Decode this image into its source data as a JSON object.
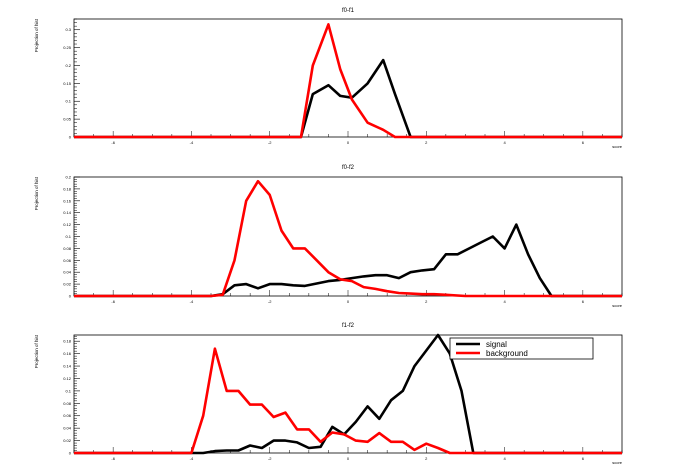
{
  "chart_data": [
    {
      "type": "line",
      "title": "f0-f1",
      "xlabel": "score",
      "ylabel": "Projection of hist",
      "xlim": [
        -7,
        7
      ],
      "ylim": [
        0,
        0.33
      ],
      "yticks": [
        0,
        0.05,
        0.1,
        0.15,
        0.2,
        0.25,
        0.3
      ],
      "ytick_labels": [
        "0",
        "0.05",
        "0.1",
        "0.15",
        "0.2",
        "0.25",
        "0.3"
      ],
      "xticks": [
        -6,
        -4,
        -2,
        0,
        2,
        4,
        6
      ],
      "xtick_labels": [
        "-6",
        "-4",
        "-2",
        "0",
        "2",
        "4",
        "6"
      ],
      "series": [
        {
          "name": "signal",
          "color": "#000000",
          "x": [
            -7,
            -1.2,
            -0.9,
            -0.5,
            -0.2,
            0.1,
            0.5,
            0.9,
            1.2,
            1.6,
            7
          ],
          "y": [
            0,
            0,
            0.12,
            0.145,
            0.115,
            0.11,
            0.15,
            0.215,
            0.12,
            0,
            0
          ]
        },
        {
          "name": "background",
          "color": "#ff0000",
          "x": [
            -7,
            -1.2,
            -0.9,
            -0.5,
            -0.2,
            0.1,
            0.5,
            0.9,
            1.2,
            7
          ],
          "y": [
            0,
            0,
            0.2,
            0.315,
            0.19,
            0.105,
            0.04,
            0.02,
            0,
            0
          ]
        }
      ]
    },
    {
      "type": "line",
      "title": "f0-f2",
      "xlabel": "score",
      "ylabel": "Projection of hist",
      "xlim": [
        -7,
        7
      ],
      "ylim": [
        0,
        0.2
      ],
      "yticks": [
        0,
        0.02,
        0.04,
        0.06,
        0.08,
        0.1,
        0.12,
        0.14,
        0.16,
        0.18,
        0.2
      ],
      "ytick_labels": [
        "0",
        "0.02",
        "0.04",
        "0.06",
        "0.08",
        "0.1",
        "0.12",
        "0.14",
        "0.16",
        "0.18",
        "0.2"
      ],
      "xticks": [
        -6,
        -4,
        -2,
        0,
        2,
        4,
        6
      ],
      "xtick_labels": [
        "-6",
        "-4",
        "-2",
        "0",
        "2",
        "4",
        "6"
      ],
      "series": [
        {
          "name": "signal",
          "color": "#000000",
          "x": [
            -7,
            -3.5,
            -3.2,
            -2.9,
            -2.6,
            -2.3,
            -2.0,
            -1.7,
            -1.4,
            -1.1,
            -0.8,
            -0.5,
            -0.2,
            0.1,
            0.4,
            0.7,
            1.0,
            1.3,
            1.6,
            1.9,
            2.2,
            2.5,
            2.8,
            3.1,
            3.4,
            3.7,
            4.0,
            4.3,
            4.6,
            4.9,
            5.2,
            7
          ],
          "y": [
            0,
            0,
            0.003,
            0.018,
            0.02,
            0.013,
            0.02,
            0.02,
            0.018,
            0.017,
            0.021,
            0.025,
            0.027,
            0.03,
            0.033,
            0.035,
            0.035,
            0.03,
            0.04,
            0.043,
            0.045,
            0.07,
            0.07,
            0.08,
            0.09,
            0.1,
            0.08,
            0.12,
            0.07,
            0.03,
            0,
            0
          ]
        },
        {
          "name": "background",
          "color": "#ff0000",
          "x": [
            -7,
            -3.5,
            -3.2,
            -2.9,
            -2.6,
            -2.3,
            -2.0,
            -1.7,
            -1.4,
            -1.1,
            -0.8,
            -0.5,
            -0.2,
            0.1,
            0.4,
            0.7,
            1.0,
            1.3,
            1.6,
            1.9,
            2.2,
            2.5,
            3.0,
            7
          ],
          "y": [
            0,
            0,
            0.002,
            0.06,
            0.16,
            0.193,
            0.17,
            0.11,
            0.08,
            0.08,
            0.06,
            0.04,
            0.028,
            0.025,
            0.015,
            0.012,
            0.008,
            0.005,
            0.004,
            0.003,
            0.003,
            0.002,
            0,
            0
          ]
        }
      ]
    },
    {
      "type": "line",
      "title": "f1-f2",
      "xlabel": "score",
      "ylabel": "Projection of hist",
      "xlim": [
        -7,
        7
      ],
      "ylim": [
        0,
        0.19
      ],
      "yticks": [
        0,
        0.02,
        0.04,
        0.06,
        0.08,
        0.1,
        0.12,
        0.14,
        0.16,
        0.18
      ],
      "ytick_labels": [
        "0",
        "0.02",
        "0.04",
        "0.06",
        "0.08",
        "0.1",
        "0.12",
        "0.14",
        "0.16",
        "0.18"
      ],
      "xticks": [
        -6,
        -4,
        -2,
        0,
        2,
        4,
        6
      ],
      "xtick_labels": [
        "-6",
        "-4",
        "-2",
        "0",
        "2",
        "4",
        "6"
      ],
      "legend": {
        "position": "top-right",
        "entries": [
          "signal",
          "background"
        ]
      },
      "series": [
        {
          "name": "signal",
          "color": "#000000",
          "x": [
            -7,
            -4.0,
            -3.7,
            -3.4,
            -3.1,
            -2.8,
            -2.5,
            -2.2,
            -1.9,
            -1.6,
            -1.3,
            -1.0,
            -0.7,
            -0.4,
            -0.1,
            0.2,
            0.5,
            0.8,
            1.1,
            1.4,
            1.7,
            2.0,
            2.3,
            2.6,
            2.9,
            3.2,
            7
          ],
          "y": [
            0,
            0,
            0,
            0.003,
            0.004,
            0.004,
            0.012,
            0.008,
            0.02,
            0.02,
            0.017,
            0.008,
            0.01,
            0.042,
            0.03,
            0.05,
            0.075,
            0.055,
            0.085,
            0.1,
            0.14,
            0.165,
            0.19,
            0.16,
            0.1,
            0,
            0
          ]
        },
        {
          "name": "background",
          "color": "#ff0000",
          "x": [
            -7,
            -4.0,
            -3.7,
            -3.4,
            -3.1,
            -2.8,
            -2.5,
            -2.2,
            -1.9,
            -1.6,
            -1.3,
            -1.0,
            -0.7,
            -0.4,
            -0.1,
            0.2,
            0.5,
            0.8,
            1.1,
            1.4,
            1.7,
            2.0,
            2.3,
            2.6,
            2.9,
            3.2,
            7
          ],
          "y": [
            0,
            0,
            0.06,
            0.168,
            0.1,
            0.1,
            0.078,
            0.078,
            0.058,
            0.065,
            0.038,
            0.038,
            0.018,
            0.033,
            0.03,
            0.02,
            0.018,
            0.032,
            0.018,
            0.018,
            0.005,
            0.015,
            0.008,
            0,
            0,
            0,
            0
          ]
        }
      ]
    }
  ]
}
